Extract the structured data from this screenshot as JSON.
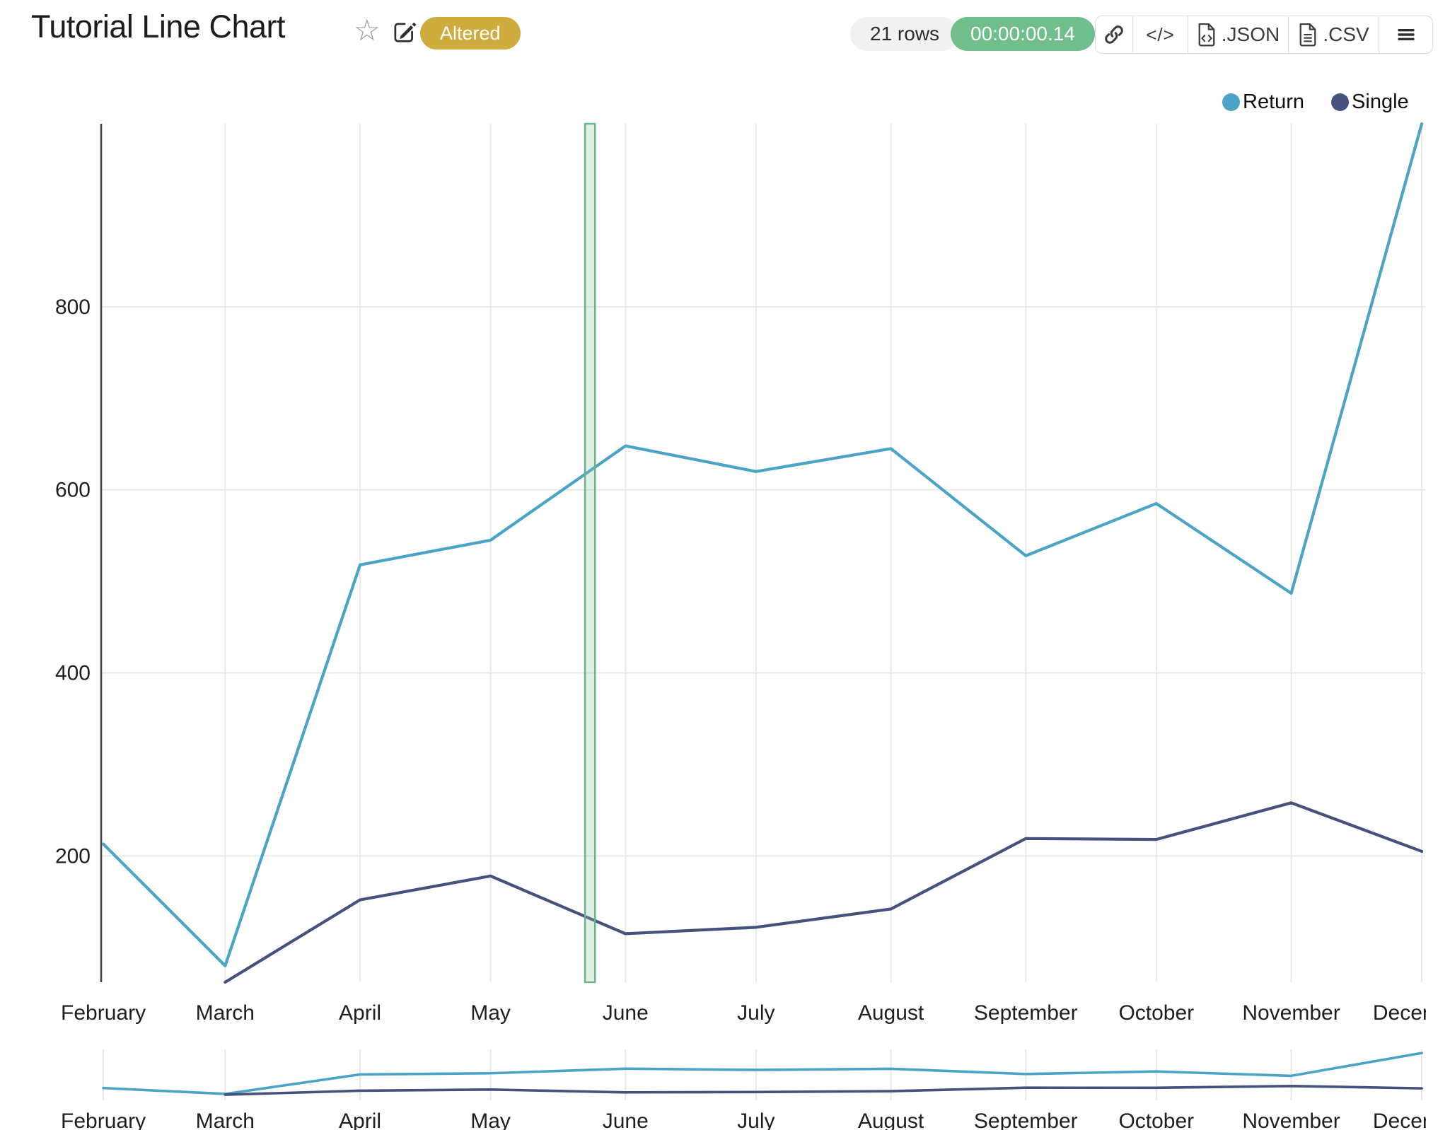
{
  "header": {
    "title": "Tutorial Line Chart",
    "status_badge": "Altered",
    "row_count_badge": "21 rows",
    "elapsed_time_badge": "00:00:00.14",
    "toolbar": {
      "code_button_label": "</>",
      "json_button_label": ".JSON",
      "csv_button_label": ".CSV"
    },
    "icon_names": [
      "star-icon",
      "edit-icon",
      "link-icon",
      "code-icon",
      "json-file-icon",
      "csv-file-icon",
      "menu-icon"
    ]
  },
  "colors": {
    "return_series": "#4BA3C6",
    "single_series": "#46517D",
    "badge_gold": "#CFAC3E",
    "badge_green": "#6FBE8C",
    "pill_gray": "#F1F1F1",
    "grid": "#E8E8E8",
    "axis": "#454545",
    "band_fill": "#8CC7A2",
    "band_border": "#69B388"
  },
  "legend": {
    "position": "top-right",
    "items": [
      {
        "label": "Return",
        "color": "#4BA3C6"
      },
      {
        "label": "Single",
        "color": "#46517D"
      }
    ]
  },
  "chart_data": {
    "type": "line",
    "title": "Tutorial Line Chart",
    "x_type": "time-months",
    "categories": [
      "February",
      "March",
      "April",
      "May",
      "June",
      "July",
      "August",
      "September",
      "October",
      "November",
      "December"
    ],
    "x_days": [
      32,
      60,
      91,
      121,
      152,
      182,
      213,
      244,
      274,
      305,
      335
    ],
    "series": [
      {
        "name": "Return",
        "color": "#4BA3C6",
        "values": [
          213,
          80,
          518,
          545,
          648,
          620,
          645,
          528,
          585,
          487,
          1000
        ]
      },
      {
        "name": "Single",
        "color": "#46517D",
        "values": [
          null,
          62,
          152,
          178,
          115,
          122,
          142,
          219,
          218,
          258,
          205
        ]
      }
    ],
    "y_ticks": [
      200,
      400,
      600,
      800
    ],
    "ylim": [
      62,
      1000
    ],
    "xlim_days": [
      31.5,
      335.8
    ],
    "grid": true,
    "legend_position": "top-right",
    "highlight_band_days": [
      142.7,
      145
    ],
    "navigator": {
      "present": true,
      "ylim": [
        0,
        1050
      ]
    }
  }
}
